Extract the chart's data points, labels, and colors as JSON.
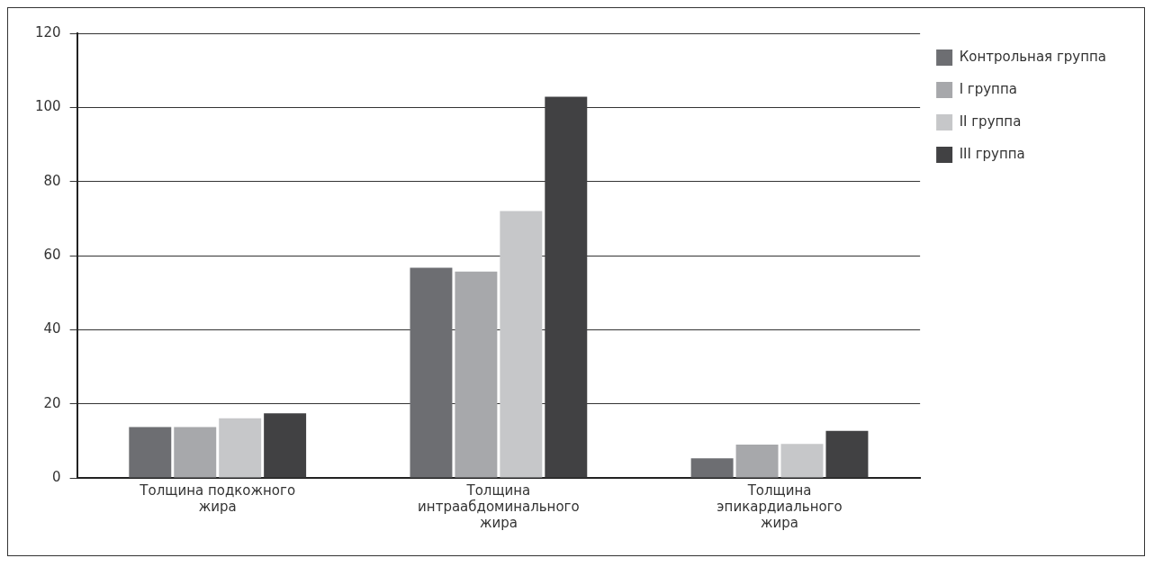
{
  "chart_data": {
    "type": "bar",
    "categories": [
      "Толщина подкожного жира",
      "Толщина интраабдоминального жира",
      "Толщина эпикардиального жира"
    ],
    "series": [
      {
        "name": "Контрольная группа",
        "color": "#6d6e72",
        "values": [
          13.7,
          56.7,
          5.3
        ]
      },
      {
        "name": "I группа",
        "color": "#a7a8ab",
        "values": [
          13.7,
          55.7,
          9.0
        ]
      },
      {
        "name": "II группа",
        "color": "#c6c7c9",
        "values": [
          16.1,
          72.0,
          9.2
        ]
      },
      {
        "name": "III группа",
        "color": "#414143",
        "values": [
          17.4,
          102.9,
          12.7
        ]
      }
    ],
    "ylim": [
      0,
      120
    ],
    "yticks": [
      0,
      20,
      40,
      60,
      80,
      100,
      120
    ],
    "grid": "y",
    "legend": "top right"
  }
}
